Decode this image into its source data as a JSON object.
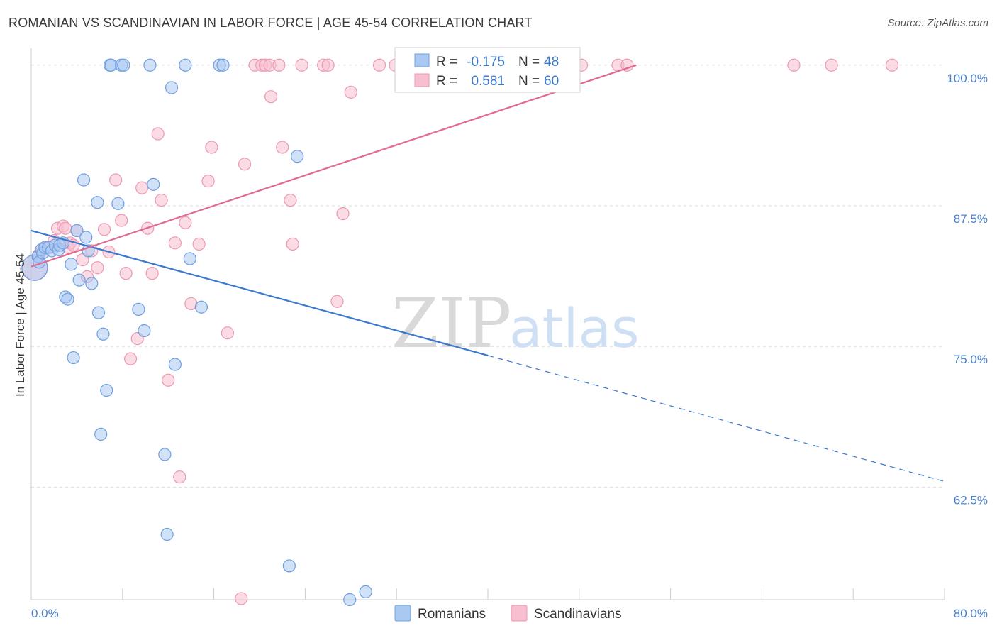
{
  "title": "ROMANIAN VS SCANDINAVIAN IN LABOR FORCE | AGE 45-54 CORRELATION CHART",
  "source": "Source: ZipAtlas.com",
  "watermark": {
    "zip": "ZIP",
    "atlas": "atlas"
  },
  "colors": {
    "romanians_fill": "#a9c8f2",
    "romanians_stroke": "#6f9fe0",
    "romanians_line": "#3b78d0",
    "scandinavians_fill": "#f7bfcf",
    "scandinavians_stroke": "#ec99b1",
    "scandinavians_line": "#e06a92",
    "tick_label": "#4a7fd0",
    "grid": "#dddddd"
  },
  "legend_box": {
    "rows": [
      {
        "r_label": "R =",
        "r_value": "-0.175",
        "n_label": "N =",
        "n_value": "48"
      },
      {
        "r_label": "R =",
        "r_value": "0.581",
        "n_label": "N =",
        "n_value": "60"
      }
    ]
  },
  "chart_data": {
    "type": "scatter",
    "title": "ROMANIAN VS SCANDINAVIAN IN LABOR FORCE | AGE 45-54 CORRELATION CHART",
    "xlabel": "",
    "ylabel": "In Labor Force | Age 45-54",
    "xlim": [
      0,
      80
    ],
    "ylim": [
      52.5,
      101.5
    ],
    "x_tick_labels": [
      {
        "value": 0,
        "label": "0.0%"
      },
      {
        "value": 80,
        "label": "80.0%"
      }
    ],
    "y_tick_labels": [
      {
        "value": 100,
        "label": "100.0%"
      },
      {
        "value": 87.5,
        "label": "87.5%"
      },
      {
        "value": 75,
        "label": "75.0%"
      },
      {
        "value": 62.5,
        "label": "62.5%"
      }
    ],
    "grid": true,
    "legend_position": "bottom",
    "series": [
      {
        "name": "Romanians",
        "R": -0.175,
        "N": 48,
        "trend": {
          "x1": 0,
          "y1": 85.3,
          "x2": 40,
          "y2": 74.2,
          "dash_x2": 80,
          "dash_y2": 63.0
        },
        "points": [
          [
            0.3,
            82.0
          ],
          [
            0.6,
            83.0
          ],
          [
            0.7,
            82.5
          ],
          [
            0.9,
            83.6
          ],
          [
            1.0,
            83.3
          ],
          [
            1.2,
            83.8
          ],
          [
            1.5,
            83.8
          ],
          [
            1.8,
            83.5
          ],
          [
            2.1,
            84.0
          ],
          [
            2.4,
            83.6
          ],
          [
            2.5,
            84.0
          ],
          [
            2.8,
            84.2
          ],
          [
            3.0,
            79.4
          ],
          [
            3.2,
            79.2
          ],
          [
            3.5,
            82.3
          ],
          [
            3.7,
            74.0
          ],
          [
            4.0,
            85.3
          ],
          [
            4.2,
            80.9
          ],
          [
            4.6,
            89.8
          ],
          [
            4.8,
            84.7
          ],
          [
            5.0,
            83.5
          ],
          [
            5.3,
            80.6
          ],
          [
            5.8,
            87.8
          ],
          [
            5.9,
            78.0
          ],
          [
            6.1,
            67.2
          ],
          [
            6.3,
            76.1
          ],
          [
            6.6,
            71.1
          ],
          [
            6.9,
            100.0
          ],
          [
            7.0,
            100.0
          ],
          [
            7.6,
            87.7
          ],
          [
            7.9,
            100.0
          ],
          [
            8.1,
            100.0
          ],
          [
            9.4,
            78.3
          ],
          [
            9.9,
            76.4
          ],
          [
            10.4,
            100.0
          ],
          [
            10.7,
            89.4
          ],
          [
            11.7,
            65.4
          ],
          [
            11.9,
            58.3
          ],
          [
            12.3,
            98.0
          ],
          [
            12.6,
            73.4
          ],
          [
            13.5,
            100.0
          ],
          [
            13.9,
            82.8
          ],
          [
            14.9,
            78.5
          ],
          [
            16.5,
            100.0
          ],
          [
            16.8,
            100.0
          ],
          [
            22.6,
            55.5
          ],
          [
            23.3,
            91.9
          ],
          [
            27.9,
            52.5
          ],
          [
            29.3,
            53.2
          ]
        ]
      },
      {
        "name": "Scandinavians",
        "R": 0.581,
        "N": 60,
        "trend": {
          "x1": 0,
          "y1": 82.1,
          "x2": 53.0,
          "y2": 100.0
        },
        "points": [
          [
            0.3,
            82.0
          ],
          [
            0.7,
            83.2
          ],
          [
            1.1,
            83.7
          ],
          [
            1.6,
            83.8
          ],
          [
            2.0,
            84.4
          ],
          [
            2.3,
            85.5
          ],
          [
            2.8,
            85.7
          ],
          [
            3.0,
            85.5
          ],
          [
            3.2,
            83.8
          ],
          [
            3.4,
            84.2
          ],
          [
            3.7,
            84.0
          ],
          [
            4.0,
            85.3
          ],
          [
            4.5,
            82.7
          ],
          [
            4.9,
            81.2
          ],
          [
            5.3,
            83.5
          ],
          [
            5.8,
            82.0
          ],
          [
            6.4,
            85.4
          ],
          [
            6.8,
            83.4
          ],
          [
            7.4,
            89.8
          ],
          [
            7.9,
            86.2
          ],
          [
            8.3,
            81.5
          ],
          [
            8.7,
            73.9
          ],
          [
            9.3,
            75.7
          ],
          [
            9.7,
            89.1
          ],
          [
            10.2,
            85.5
          ],
          [
            10.6,
            81.5
          ],
          [
            11.1,
            93.9
          ],
          [
            11.4,
            88.0
          ],
          [
            12.0,
            72.0
          ],
          [
            12.6,
            84.2
          ],
          [
            13.0,
            63.4
          ],
          [
            13.5,
            86.0
          ],
          [
            14.0,
            78.8
          ],
          [
            14.7,
            84.1
          ],
          [
            15.5,
            89.7
          ],
          [
            15.8,
            92.7
          ],
          [
            17.2,
            76.2
          ],
          [
            18.4,
            52.6
          ],
          [
            18.7,
            91.2
          ],
          [
            19.6,
            100.0
          ],
          [
            20.2,
            100.0
          ],
          [
            20.5,
            100.0
          ],
          [
            20.9,
            100.0
          ],
          [
            21.0,
            97.2
          ],
          [
            21.7,
            100.0
          ],
          [
            22.0,
            92.7
          ],
          [
            22.7,
            88.0
          ],
          [
            22.9,
            84.1
          ],
          [
            23.7,
            100.0
          ],
          [
            25.6,
            100.0
          ],
          [
            26.0,
            100.0
          ],
          [
            26.8,
            79.0
          ],
          [
            27.3,
            86.8
          ],
          [
            28.0,
            97.6
          ],
          [
            30.5,
            100.0
          ],
          [
            31.9,
            100.0
          ],
          [
            33.0,
            100.0
          ],
          [
            38.2,
            100.0
          ],
          [
            48.2,
            100.0
          ],
          [
            51.4,
            100.0
          ],
          [
            52.2,
            100.0
          ],
          [
            66.8,
            100.0
          ],
          [
            70.1,
            100.0
          ],
          [
            75.4,
            100.0
          ]
        ]
      }
    ]
  }
}
